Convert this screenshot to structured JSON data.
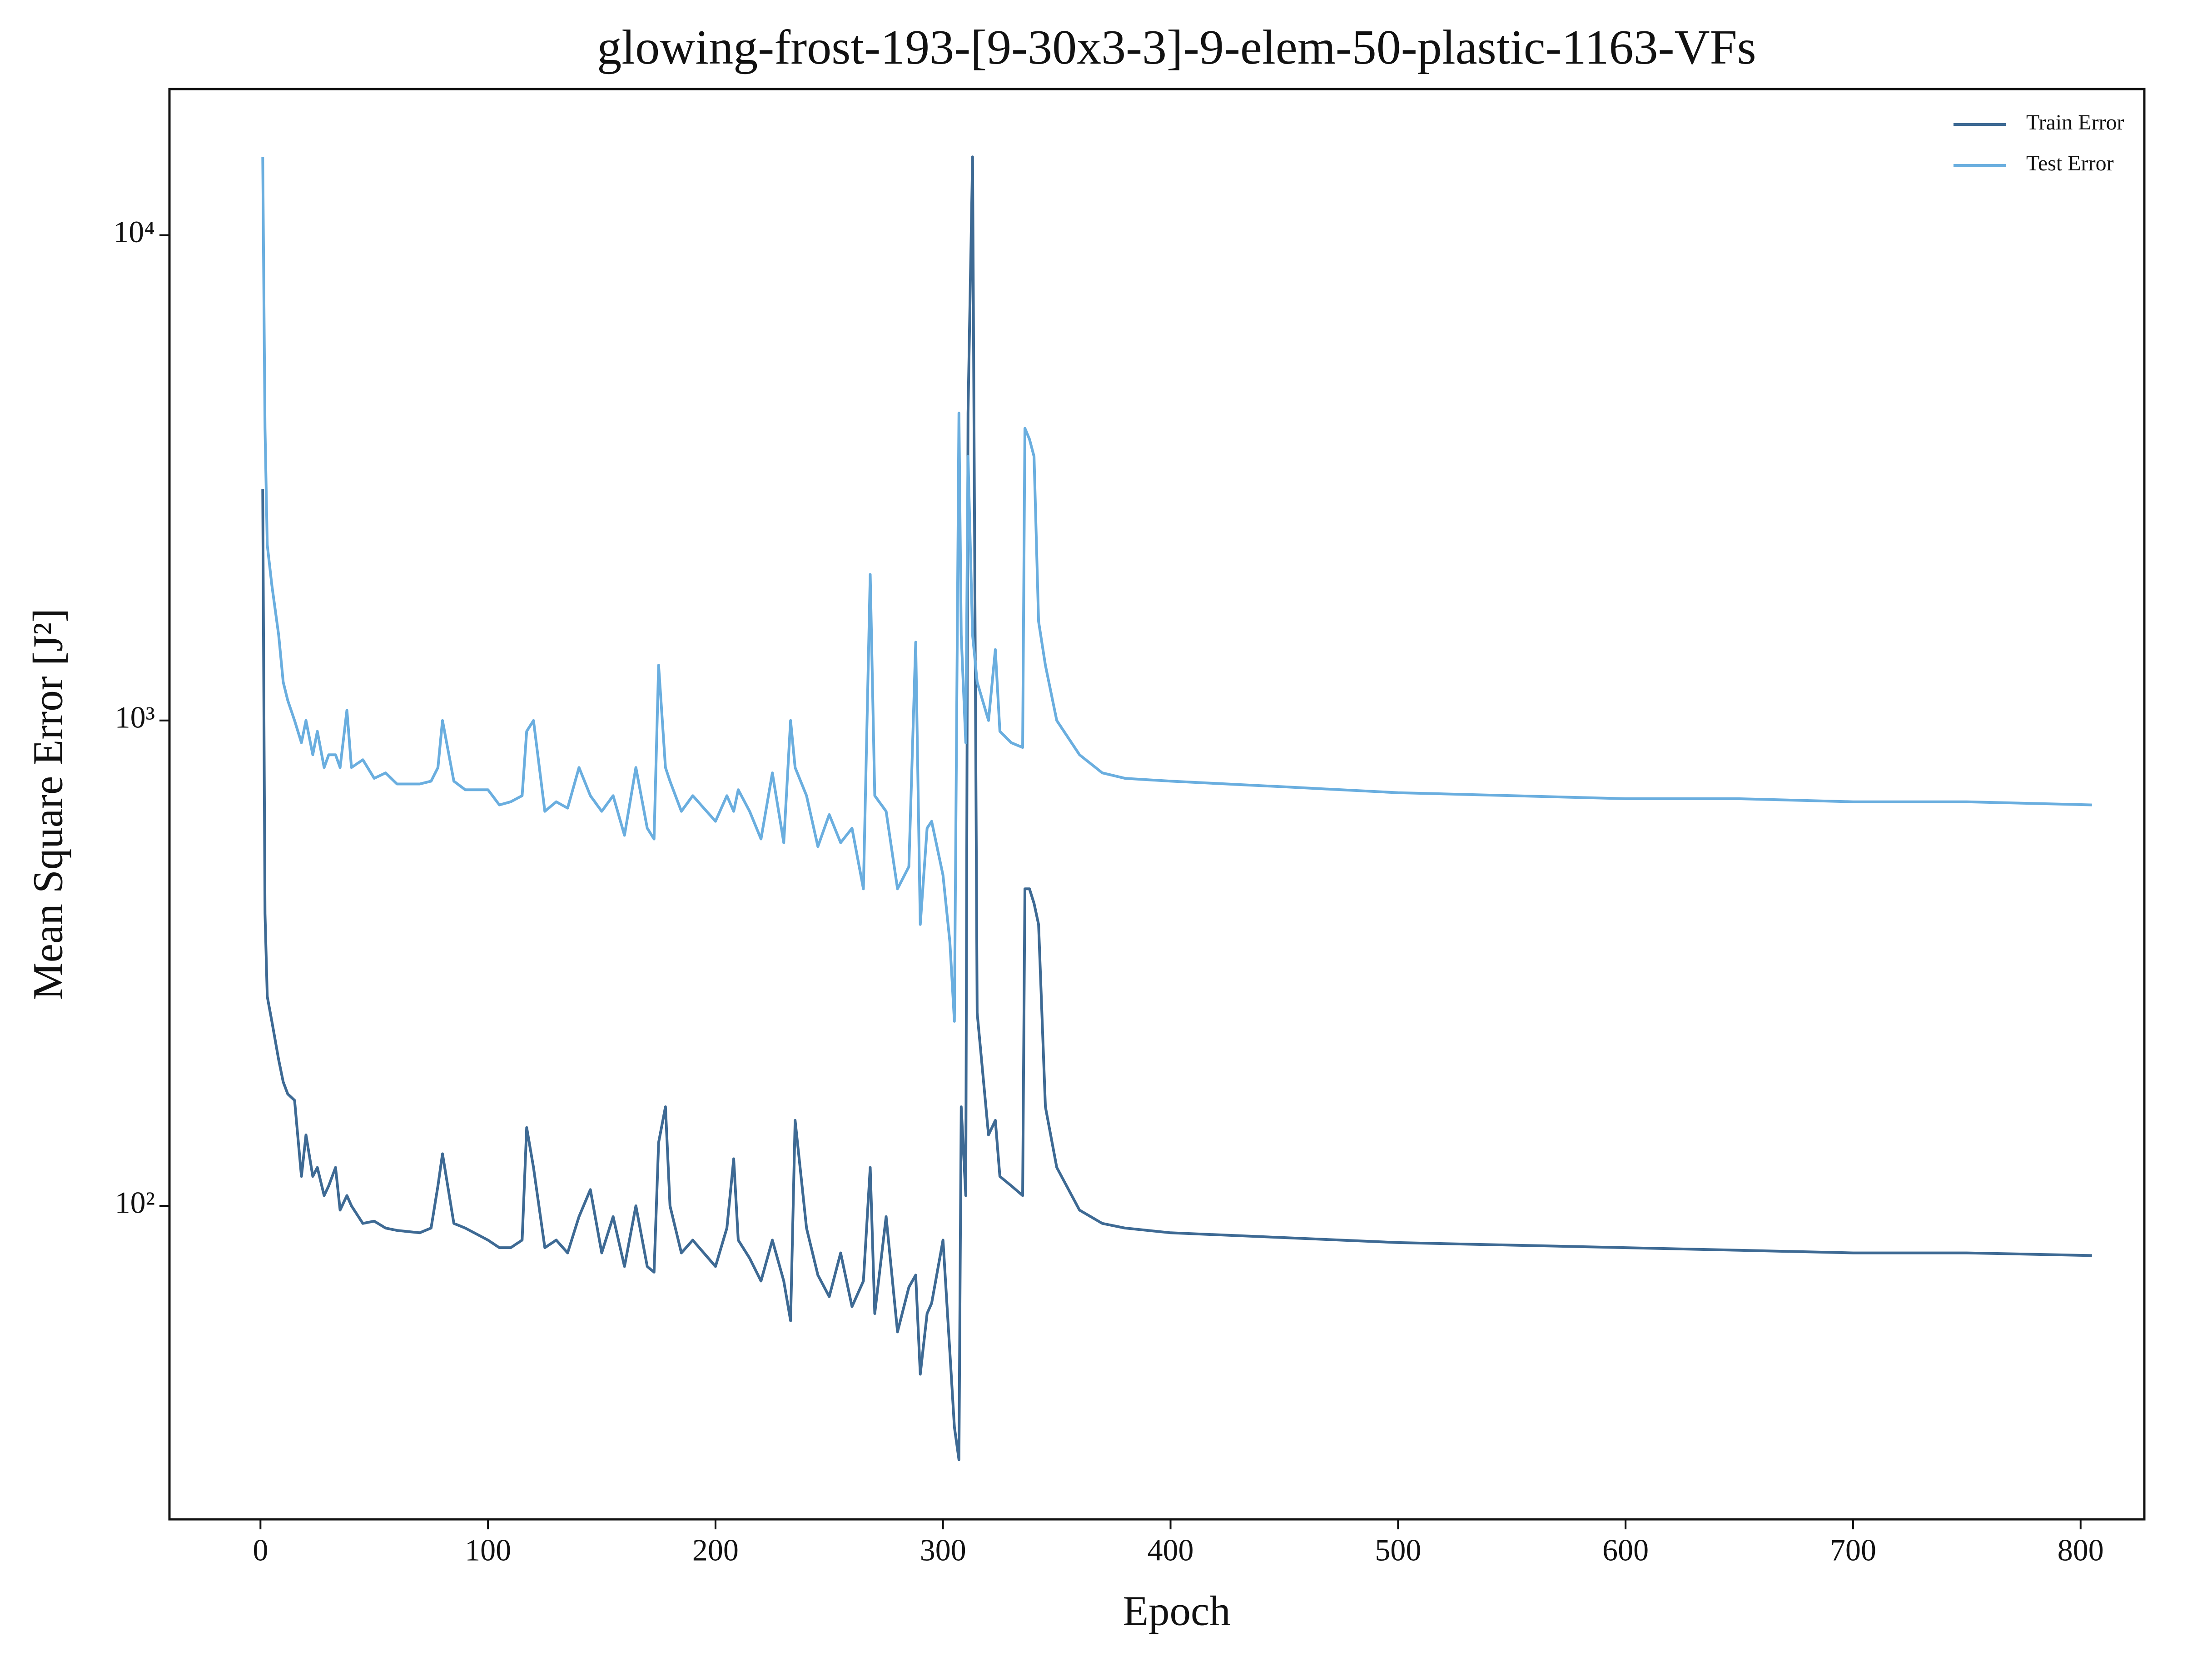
{
  "chart_data": {
    "type": "line",
    "title": "glowing-frost-193-[9-30x3-3]-9-elem-50-plastic-1163-VFs",
    "x_label": "Epoch",
    "y_label": "Mean Square Error [J²]",
    "log_y": true,
    "legend": "upper right",
    "xlim": [
      -40,
      828
    ],
    "ylim": [
      22.6,
      20000
    ],
    "xticks": [
      0,
      100,
      200,
      300,
      400,
      500,
      600,
      700,
      800
    ],
    "yticks": [
      {
        "value": 100,
        "label": "10²"
      },
      {
        "value": 1000,
        "label": "10³"
      },
      {
        "value": 10000,
        "label": "10⁴"
      }
    ],
    "x": [
      1,
      2,
      3,
      5,
      8,
      10,
      12,
      15,
      18,
      20,
      23,
      25,
      28,
      30,
      33,
      35,
      38,
      40,
      45,
      50,
      55,
      60,
      70,
      75,
      78,
      80,
      85,
      90,
      100,
      105,
      110,
      115,
      117,
      120,
      125,
      130,
      135,
      140,
      145,
      150,
      155,
      160,
      165,
      170,
      173,
      175,
      178,
      180,
      185,
      190,
      200,
      205,
      208,
      210,
      215,
      220,
      225,
      230,
      233,
      235,
      240,
      245,
      250,
      255,
      260,
      265,
      268,
      270,
      275,
      280,
      285,
      288,
      290,
      293,
      295,
      300,
      303,
      305,
      307,
      308,
      310,
      311,
      313,
      315,
      320,
      323,
      325,
      330,
      335,
      336,
      338,
      340,
      342,
      345,
      350,
      360,
      370,
      380,
      400,
      450,
      500,
      550,
      600,
      650,
      700,
      750,
      805
    ],
    "series": [
      {
        "name": "Train Error",
        "color": "#3e6a94",
        "values": [
          3000,
          400,
          270,
          240,
          200,
          180,
          170,
          165,
          115,
          140,
          115,
          120,
          105,
          110,
          120,
          98,
          105,
          100,
          92,
          93,
          90,
          89,
          88,
          90,
          110,
          128,
          92,
          90,
          85,
          82,
          82,
          85,
          145,
          120,
          82,
          85,
          80,
          95,
          108,
          80,
          95,
          75,
          100,
          75,
          73,
          135,
          160,
          100,
          80,
          85,
          75,
          90,
          125,
          85,
          78,
          70,
          85,
          70,
          58,
          150,
          90,
          72,
          65,
          80,
          62,
          70,
          120,
          60,
          95,
          55,
          68,
          72,
          45,
          60,
          63,
          85,
          50,
          35,
          30,
          160,
          105,
          4300,
          14500,
          250,
          140,
          150,
          115,
          110,
          105,
          450,
          450,
          420,
          380,
          160,
          120,
          98,
          92,
          90,
          88,
          86,
          84,
          83,
          82,
          81,
          80,
          80,
          79
        ]
      },
      {
        "name": "Test Error",
        "color": "#6aaedf",
        "values": [
          14500,
          4000,
          2300,
          1900,
          1500,
          1200,
          1100,
          1000,
          900,
          1000,
          850,
          950,
          800,
          850,
          850,
          800,
          1050,
          800,
          830,
          760,
          780,
          740,
          740,
          750,
          800,
          1000,
          750,
          720,
          720,
          670,
          680,
          700,
          950,
          1000,
          650,
          680,
          660,
          800,
          700,
          650,
          700,
          580,
          800,
          600,
          570,
          1300,
          800,
          750,
          650,
          700,
          620,
          700,
          650,
          720,
          650,
          570,
          780,
          560,
          1000,
          800,
          700,
          550,
          640,
          560,
          600,
          450,
          2000,
          700,
          650,
          450,
          500,
          1450,
          380,
          600,
          620,
          480,
          350,
          240,
          4300,
          1500,
          900,
          3500,
          1500,
          1200,
          1000,
          1400,
          950,
          900,
          880,
          4000,
          3800,
          3500,
          1600,
          1300,
          1000,
          850,
          780,
          760,
          750,
          730,
          710,
          700,
          690,
          690,
          680,
          680,
          670
        ]
      }
    ]
  }
}
